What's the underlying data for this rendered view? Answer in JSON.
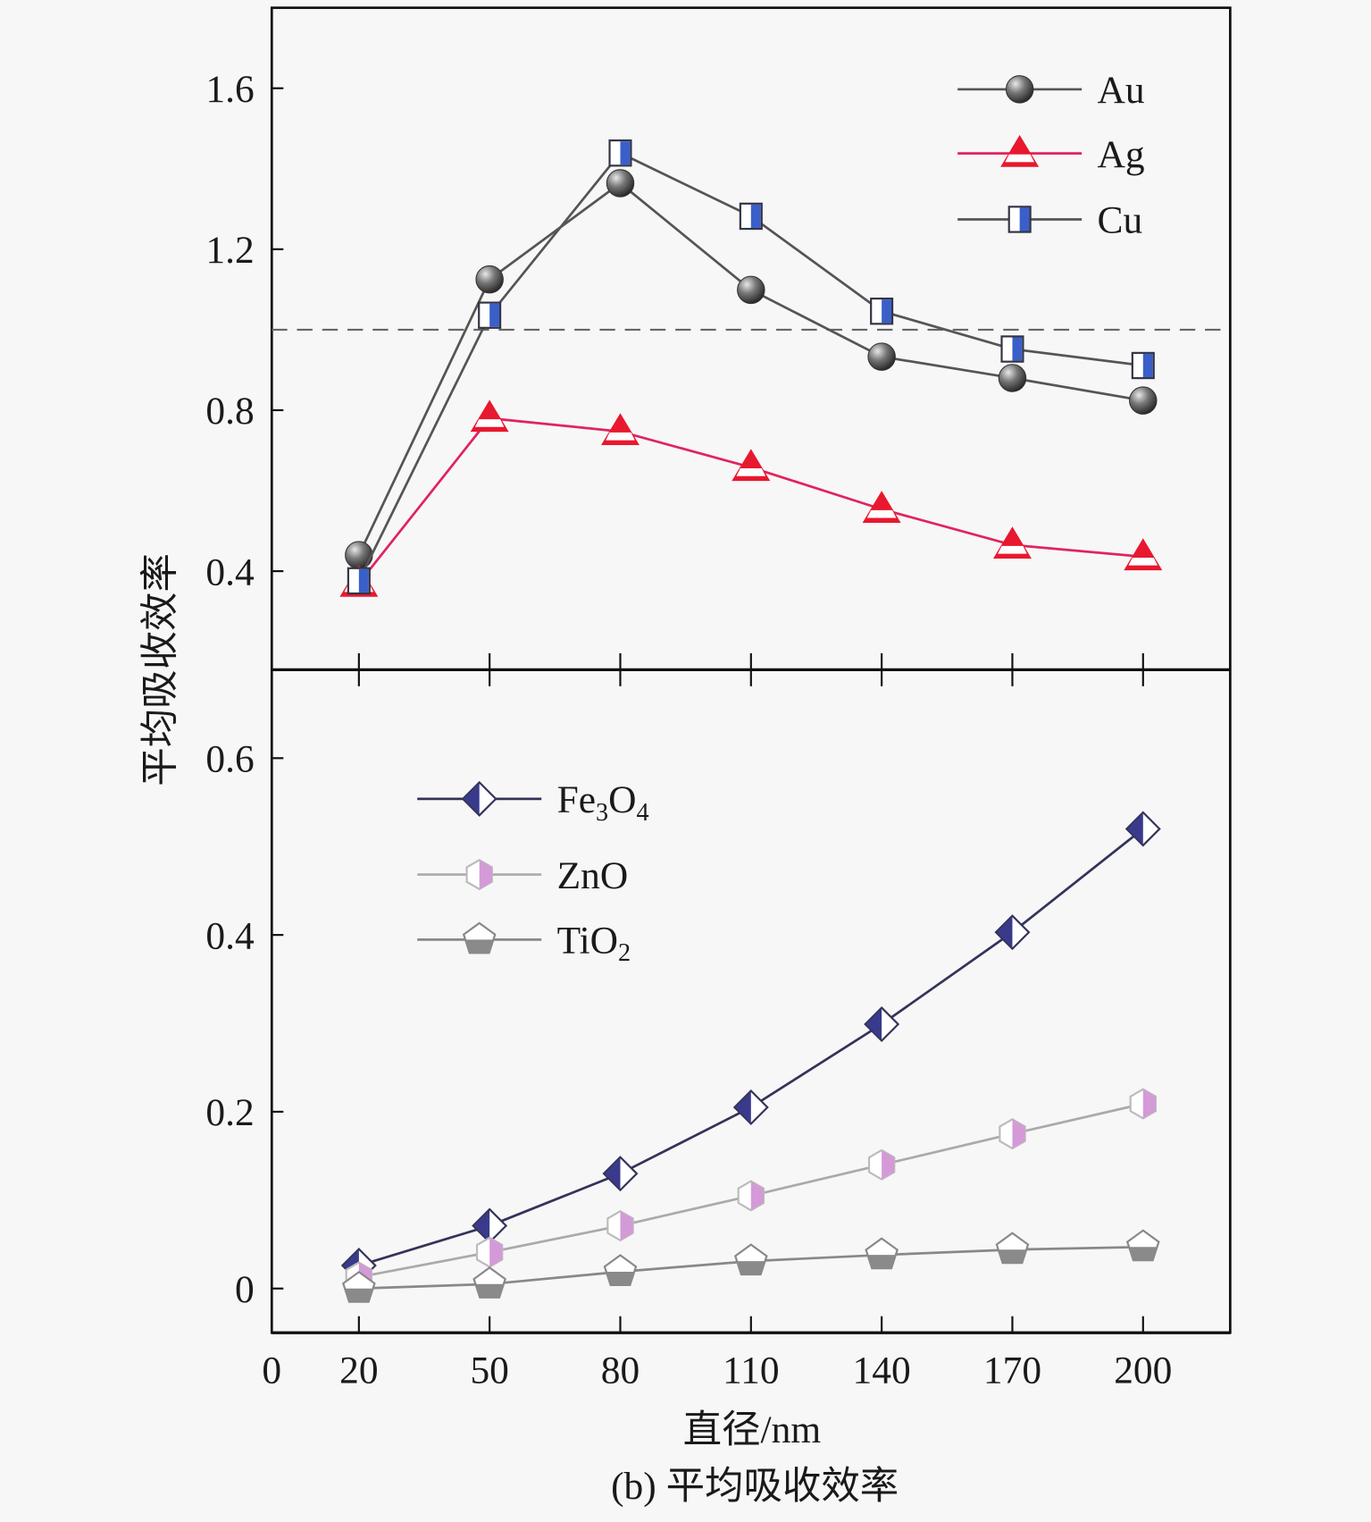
{
  "chart_data": [
    {
      "type": "line",
      "panel": "top",
      "x": [
        20,
        50,
        80,
        110,
        140,
        170,
        200
      ],
      "xlim": [
        0,
        220
      ],
      "ylim": [
        0.155,
        1.8
      ],
      "yticks": [
        0.4,
        0.8,
        1.2,
        1.6
      ],
      "ytick_labels": [
        "0.4",
        "0.8",
        "1.2",
        "1.6"
      ],
      "reference_line": 1.0,
      "legend_position": "top-right",
      "series": [
        {
          "name": "Au",
          "color": "#555555",
          "marker": "sphere",
          "values": [
            0.44,
            1.125,
            1.364,
            1.099,
            0.933,
            0.88,
            0.824
          ]
        },
        {
          "name": "Ag",
          "color": "#e0245e",
          "marker": "triangle",
          "values": [
            0.37,
            0.78,
            0.747,
            0.658,
            0.554,
            0.465,
            0.436
          ]
        },
        {
          "name": "Cu",
          "color": "#555555",
          "marker": "half-square",
          "values": [
            0.376,
            1.036,
            1.439,
            1.282,
            1.046,
            0.952,
            0.911
          ]
        }
      ]
    },
    {
      "type": "line",
      "panel": "bottom",
      "x": [
        20,
        50,
        80,
        110,
        140,
        170,
        200
      ],
      "xlim": [
        0,
        220
      ],
      "ylim": [
        -0.05,
        0.7
      ],
      "yticks": [
        0,
        0.2,
        0.4,
        0.6
      ],
      "ytick_labels": [
        "0",
        "0.2",
        "0.4",
        "0.6"
      ],
      "legend_position": "top-left",
      "series": [
        {
          "name": "Fe3O4",
          "label_parts": [
            "Fe",
            "3",
            "O",
            "4"
          ],
          "color": "#33335a",
          "marker": "diamond",
          "values": [
            0.026,
            0.071,
            0.13,
            0.205,
            0.299,
            0.403,
            0.52
          ]
        },
        {
          "name": "ZnO",
          "label_parts": [
            "ZnO"
          ],
          "color": "#aaaaaa",
          "marker": "hexagon",
          "values": [
            0.013,
            0.041,
            0.071,
            0.105,
            0.14,
            0.175,
            0.209
          ]
        },
        {
          "name": "TiO2",
          "label_parts": [
            "TiO",
            "2"
          ],
          "color": "#888888",
          "marker": "pentagon",
          "values": [
            0,
            0.005,
            0.019,
            0.031,
            0.038,
            0.044,
            0.047
          ]
        }
      ]
    }
  ],
  "xticks": [
    0,
    20,
    50,
    80,
    110,
    140,
    170,
    200
  ],
  "xtick_labels": [
    "0",
    "20",
    "50",
    "80",
    "110",
    "140",
    "170",
    "200"
  ],
  "xlabel": "直径/nm",
  "ylabel": "平均吸收效率",
  "caption": "(b) 平均吸收效率"
}
